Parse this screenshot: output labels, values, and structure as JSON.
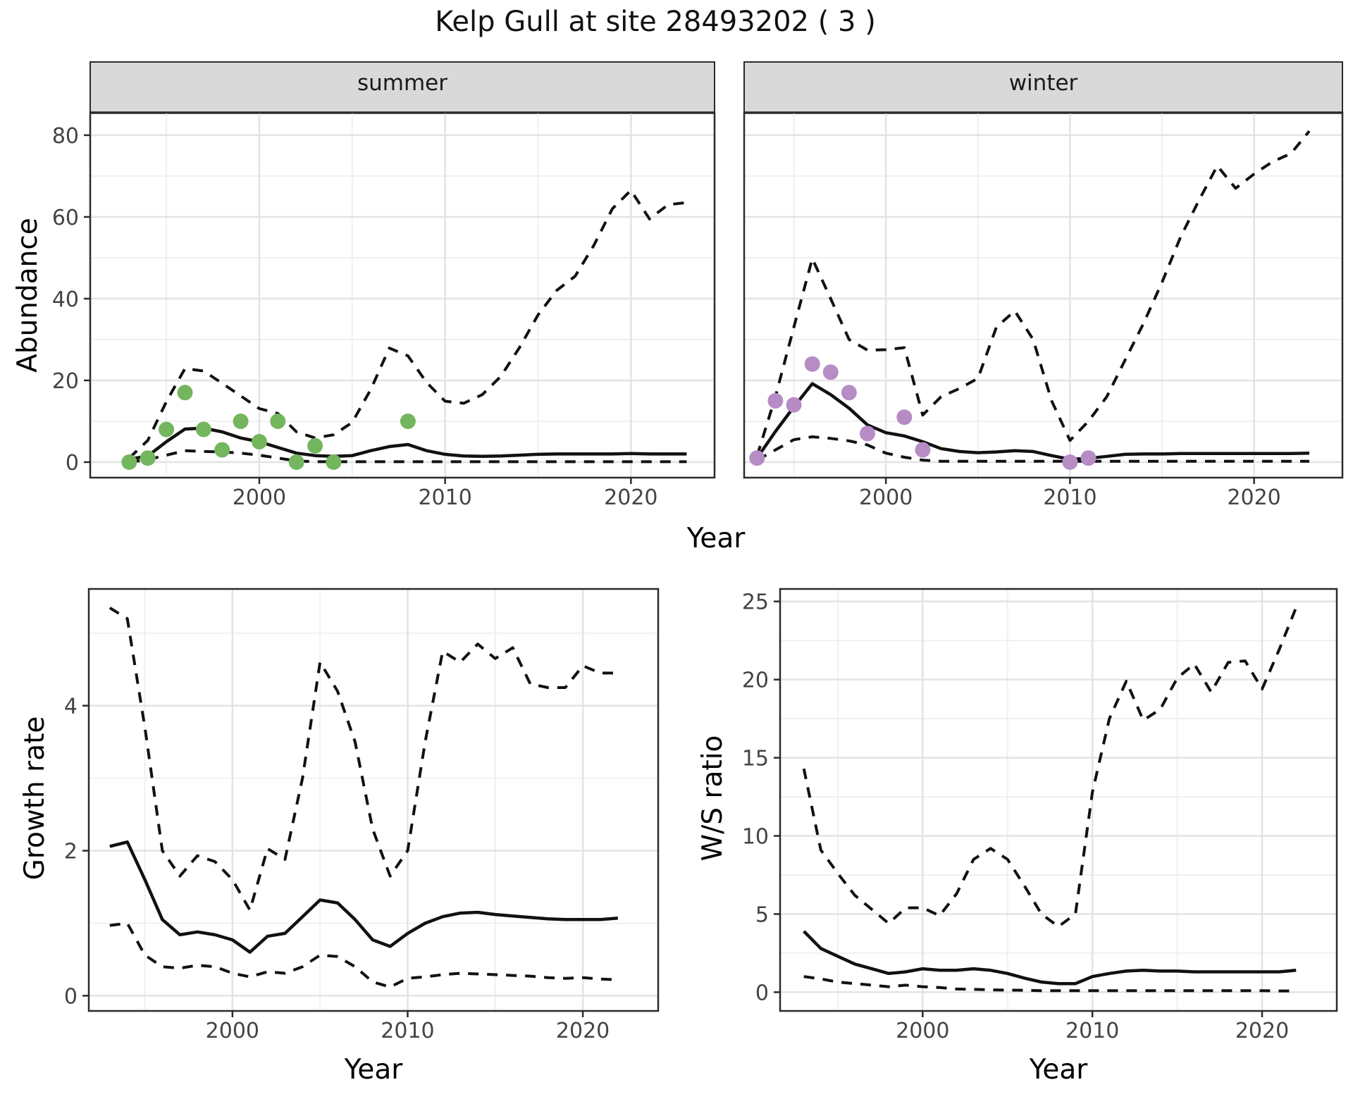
{
  "title": "Kelp Gull at site 28493202 ( 3 )",
  "axis_titles": {
    "year": "Year",
    "abundance": "Abundance",
    "growth": "Growth rate",
    "ws": "W/S ratio"
  },
  "facets": {
    "summer": "summer",
    "winter": "winter"
  },
  "colors": {
    "summer_points": "#74b65e",
    "winter_points": "#b78cc5",
    "line": "#111111",
    "grid_major": "#e3e3e3",
    "grid_minor": "#f0f0f0",
    "strip_bg": "#d9d9d9",
    "panel_border": "#2b2b2b",
    "tick_text": "#444444"
  },
  "chart_data": [
    {
      "id": "summer",
      "type": "line",
      "facet": "summer",
      "xlabel": "Year",
      "ylabel": "Abundance",
      "xlim": [
        1990.9,
        2024.5
      ],
      "ylim": [
        -3.8,
        85.5
      ],
      "x_ticks": [
        2000,
        2010,
        2020
      ],
      "x_minor_ticks": [
        1995,
        2005,
        2015
      ],
      "y_ticks": [
        0,
        20,
        40,
        60,
        80
      ],
      "y_minor_ticks": [
        10,
        30,
        50,
        70
      ],
      "years": [
        1993,
        1994,
        1995,
        1996,
        1997,
        1998,
        1999,
        2000,
        2001,
        2002,
        2003,
        2004,
        2005,
        2006,
        2007,
        2008,
        2009,
        2010,
        2011,
        2012,
        2013,
        2014,
        2015,
        2016,
        2017,
        2018,
        2019,
        2020,
        2021,
        2022,
        2023
      ],
      "series": [
        {
          "name": "upper_ci",
          "style": "dashed",
          "values": [
            1.0,
            5.3,
            14.8,
            22.9,
            22.3,
            19.3,
            16.2,
            13.1,
            11.9,
            7.4,
            5.9,
            6.7,
            9.7,
            17.8,
            27.9,
            26.0,
            19.5,
            14.9,
            14.4,
            16.5,
            21.0,
            28.0,
            36.0,
            42.0,
            45.5,
            53.0,
            62.0,
            66.5,
            59.5,
            63.0,
            63.5
          ]
        },
        {
          "name": "median",
          "style": "solid",
          "values": [
            0.7,
            1.5,
            5.0,
            8.1,
            8.3,
            7.4,
            5.9,
            5.0,
            3.6,
            2.2,
            1.6,
            1.4,
            1.6,
            2.8,
            3.8,
            4.3,
            2.8,
            1.9,
            1.5,
            1.4,
            1.5,
            1.7,
            1.9,
            2.0,
            2.0,
            2.0,
            2.0,
            2.1,
            2.0,
            2.0,
            2.0
          ]
        },
        {
          "name": "lower_ci",
          "style": "dashed",
          "values": [
            0.0,
            0.6,
            1.7,
            2.8,
            2.6,
            2.5,
            2.2,
            1.7,
            1.0,
            0.3,
            0.1,
            0.1,
            0.1,
            0.1,
            0.1,
            0.1,
            0.1,
            0.1,
            0.1,
            0.1,
            0.1,
            0.1,
            0.1,
            0.1,
            0.1,
            0.1,
            0.1,
            0.1,
            0.1,
            0.1,
            0.1
          ]
        }
      ],
      "observations": {
        "years": [
          1993,
          1994,
          1995,
          1996,
          1997,
          1998,
          1999,
          2000,
          2001,
          2002,
          2003,
          2004,
          2008
        ],
        "values": [
          0,
          1,
          8,
          17,
          8,
          3,
          10,
          5,
          10,
          0,
          4,
          0,
          10
        ],
        "color": "#74b65e"
      }
    },
    {
      "id": "winter",
      "type": "line",
      "facet": "winter",
      "xlabel": "Year",
      "ylabel": "Abundance",
      "xlim": [
        1992.3,
        2024.8
      ],
      "ylim": [
        -3.8,
        85.5
      ],
      "x_ticks": [
        2000,
        2010,
        2020
      ],
      "x_minor_ticks": [
        1995,
        2005,
        2015
      ],
      "y_ticks": [
        0,
        20,
        40,
        60,
        80
      ],
      "y_minor_ticks": [
        10,
        30,
        50,
        70
      ],
      "years": [
        1993,
        1994,
        1995,
        1996,
        1997,
        1998,
        1999,
        2000,
        2001,
        2002,
        2003,
        2004,
        2005,
        2006,
        2007,
        2008,
        2009,
        2010,
        2011,
        2012,
        2013,
        2014,
        2015,
        2016,
        2017,
        2018,
        2019,
        2020,
        2021,
        2022,
        2023
      ],
      "series": [
        {
          "name": "upper_ci",
          "style": "dashed",
          "values": [
            1.5,
            16.0,
            33.0,
            49.8,
            40.0,
            30.0,
            27.4,
            27.5,
            28.0,
            11.5,
            16.0,
            18.0,
            20.5,
            33.0,
            37.0,
            30.0,
            15.0,
            5.3,
            10.0,
            16.0,
            25.0,
            34.0,
            44.0,
            55.0,
            64.0,
            72.5,
            67.0,
            70.5,
            73.5,
            75.5,
            81.0
          ]
        },
        {
          "name": "median",
          "style": "solid",
          "values": [
            1.0,
            7.5,
            13.5,
            19.2,
            16.5,
            13.2,
            9.1,
            7.2,
            6.4,
            5.0,
            3.3,
            2.6,
            2.3,
            2.5,
            2.8,
            2.6,
            1.6,
            0.7,
            0.9,
            1.4,
            1.9,
            2.0,
            2.0,
            2.1,
            2.1,
            2.1,
            2.1,
            2.1,
            2.1,
            2.1,
            2.2
          ]
        },
        {
          "name": "lower_ci",
          "style": "dashed",
          "values": [
            0.5,
            3.0,
            5.5,
            6.2,
            5.8,
            5.2,
            4.2,
            2.2,
            1.2,
            0.5,
            0.2,
            0.2,
            0.2,
            0.2,
            0.2,
            0.2,
            0.2,
            0.2,
            0.2,
            0.2,
            0.2,
            0.2,
            0.2,
            0.2,
            0.2,
            0.2,
            0.2,
            0.2,
            0.2,
            0.2,
            0.2
          ]
        }
      ],
      "observations": {
        "years": [
          1993,
          1994,
          1995,
          1996,
          1997,
          1998,
          1999,
          2001,
          2002,
          2010,
          2011
        ],
        "values": [
          1,
          15,
          14,
          24,
          22,
          17,
          7,
          11,
          3,
          0,
          1
        ],
        "color": "#b78cc5"
      }
    },
    {
      "id": "growth",
      "type": "line",
      "facet": null,
      "xlabel": "Year",
      "ylabel": "Growth rate",
      "xlim": [
        1991.8,
        2024.3
      ],
      "ylim": [
        -0.21,
        5.61
      ],
      "x_ticks": [
        2000,
        2010,
        2020
      ],
      "x_minor_ticks": [
        1995,
        2005,
        2015
      ],
      "y_ticks": [
        0,
        2,
        4
      ],
      "y_minor_ticks": [
        1,
        3,
        5
      ],
      "years": [
        1993,
        1994,
        1995,
        1996,
        1997,
        1998,
        1999,
        2000,
        2001,
        2002,
        2003,
        2004,
        2005,
        2006,
        2007,
        2008,
        2009,
        2010,
        2011,
        2012,
        2013,
        2014,
        2015,
        2016,
        2017,
        2018,
        2019,
        2020,
        2021,
        2022
      ],
      "series": [
        {
          "name": "upper_ci",
          "style": "dashed",
          "values": [
            5.35,
            5.2,
            3.7,
            2.0,
            1.65,
            1.93,
            1.85,
            1.6,
            1.18,
            2.03,
            1.88,
            3.0,
            4.6,
            4.2,
            3.5,
            2.3,
            1.65,
            2.0,
            3.5,
            4.75,
            4.6,
            4.85,
            4.65,
            4.8,
            4.3,
            4.25,
            4.25,
            4.55,
            4.45,
            4.45
          ]
        },
        {
          "name": "median",
          "style": "solid",
          "values": [
            2.06,
            2.12,
            1.6,
            1.05,
            0.84,
            0.88,
            0.84,
            0.77,
            0.6,
            0.82,
            0.86,
            1.09,
            1.32,
            1.28,
            1.05,
            0.77,
            0.68,
            0.86,
            1.0,
            1.09,
            1.14,
            1.15,
            1.12,
            1.1,
            1.08,
            1.06,
            1.05,
            1.05,
            1.05,
            1.07
          ]
        },
        {
          "name": "lower_ci",
          "style": "dashed",
          "values": [
            0.97,
            1.0,
            0.56,
            0.4,
            0.38,
            0.42,
            0.4,
            0.31,
            0.26,
            0.33,
            0.31,
            0.4,
            0.56,
            0.54,
            0.4,
            0.19,
            0.12,
            0.24,
            0.26,
            0.29,
            0.31,
            0.3,
            0.29,
            0.28,
            0.27,
            0.25,
            0.24,
            0.25,
            0.23,
            0.22
          ]
        }
      ],
      "observations": null
    },
    {
      "id": "ws",
      "type": "line",
      "facet": null,
      "xlabel": "Year",
      "ylabel": "W/S ratio",
      "xlim": [
        1991.6,
        2024.4
      ],
      "ylim": [
        -1.2,
        25.8
      ],
      "x_ticks": [
        2000,
        2010,
        2020
      ],
      "x_minor_ticks": [
        1995,
        2005,
        2015
      ],
      "y_ticks": [
        0,
        5,
        10,
        15,
        20,
        25
      ],
      "y_minor_ticks": [
        2.5,
        7.5,
        12.5,
        17.5,
        22.5
      ],
      "years": [
        1993,
        1994,
        1995,
        1996,
        1997,
        1998,
        1999,
        2000,
        2001,
        2002,
        2003,
        2004,
        2005,
        2006,
        2007,
        2008,
        2009,
        2010,
        2011,
        2012,
        2013,
        2014,
        2015,
        2016,
        2017,
        2018,
        2019,
        2020,
        2021,
        2022
      ],
      "series": [
        {
          "name": "upper_ci",
          "style": "dashed",
          "values": [
            14.3,
            9.1,
            7.6,
            6.2,
            5.3,
            4.4,
            5.4,
            5.4,
            4.9,
            6.3,
            8.5,
            9.2,
            8.5,
            6.8,
            5.0,
            4.2,
            5.0,
            12.8,
            17.5,
            19.9,
            17.4,
            18.1,
            20.1,
            21.0,
            19.2,
            21.1,
            21.2,
            19.4,
            21.9,
            24.6
          ]
        },
        {
          "name": "median",
          "style": "solid",
          "values": [
            3.9,
            2.8,
            2.3,
            1.8,
            1.5,
            1.2,
            1.3,
            1.5,
            1.4,
            1.4,
            1.5,
            1.4,
            1.2,
            0.9,
            0.65,
            0.55,
            0.55,
            1.0,
            1.2,
            1.35,
            1.4,
            1.35,
            1.35,
            1.3,
            1.3,
            1.3,
            1.3,
            1.3,
            1.3,
            1.4
          ]
        },
        {
          "name": "lower_ci",
          "style": "dashed",
          "values": [
            1.0,
            0.85,
            0.65,
            0.55,
            0.45,
            0.35,
            0.45,
            0.35,
            0.3,
            0.2,
            0.18,
            0.15,
            0.13,
            0.12,
            0.1,
            0.1,
            0.1,
            0.1,
            0.1,
            0.1,
            0.1,
            0.1,
            0.1,
            0.1,
            0.1,
            0.1,
            0.1,
            0.1,
            0.08,
            0.08
          ]
        }
      ],
      "observations": null
    }
  ]
}
